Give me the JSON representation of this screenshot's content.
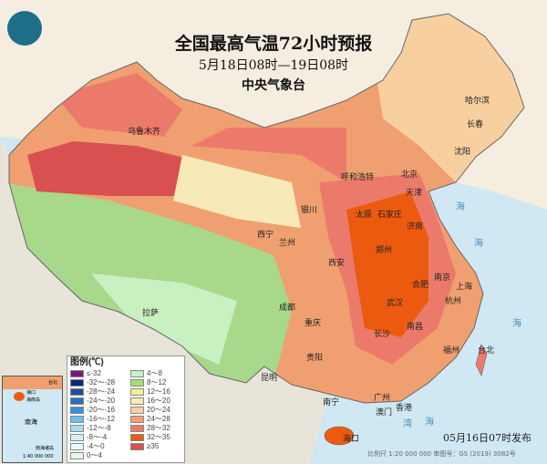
{
  "title": "全国最高气温72小时预报",
  "subtitle": "5月18日08时—19日08时",
  "issuer": "中央气象台",
  "published": "05月16日07时发布",
  "scale_note": "比例尺 1:20 000 000    审图号：GS (2019) 3082号",
  "legend": {
    "title": "图例(℃)",
    "items": [
      {
        "label": "≤-32",
        "color": "#7a1a7a"
      },
      {
        "label": "-32～-28",
        "color": "#0a2a7a"
      },
      {
        "label": "-28～-24",
        "color": "#1e4e9a"
      },
      {
        "label": "-24～-20",
        "color": "#2a6ec0"
      },
      {
        "label": "-20～-16",
        "color": "#3a8ee0"
      },
      {
        "label": "-16～-12",
        "color": "#6cc0f0"
      },
      {
        "label": "-12～-8",
        "color": "#a8dcf0"
      },
      {
        "label": "-8～-4",
        "color": "#d0eef8"
      },
      {
        "label": "-4～0",
        "color": "#eaf8fc"
      },
      {
        "label": "0～4",
        "color": "#e4f8e4"
      },
      {
        "label": "4～8",
        "color": "#c8f0c0"
      },
      {
        "label": "8～12",
        "color": "#a0e070"
      },
      {
        "label": "12～16",
        "color": "#f0f090"
      },
      {
        "label": "16～20",
        "color": "#f8eab8"
      },
      {
        "label": "20～24",
        "color": "#f8d0a0"
      },
      {
        "label": "24～28",
        "color": "#f0a070"
      },
      {
        "label": "28～32",
        "color": "#ec7a6a"
      },
      {
        "label": "32～35",
        "color": "#ec5a10"
      },
      {
        "label": "≥35",
        "color": "#d85050"
      }
    ]
  },
  "inset": {
    "sea_label": "南海",
    "caption": "南海诸岛",
    "scale": "1:40 000 000",
    "cities": [
      "海口",
      "海南岛",
      "台北"
    ]
  },
  "seas": [
    "海",
    "海",
    "海",
    "海",
    "湾"
  ],
  "cities": [
    {
      "name": "乌鲁木齐",
      "pos": [
        140,
        140
      ]
    },
    {
      "name": "哈尔滨",
      "pos": [
        510,
        106
      ]
    },
    {
      "name": "长春",
      "pos": [
        512,
        132
      ]
    },
    {
      "name": "沈阳",
      "pos": [
        498,
        162
      ]
    },
    {
      "name": "呼和浩特",
      "pos": [
        374,
        190
      ]
    },
    {
      "name": "北京",
      "pos": [
        440,
        187
      ]
    },
    {
      "name": "天津",
      "pos": [
        445,
        207
      ]
    },
    {
      "name": "银川",
      "pos": [
        330,
        226
      ]
    },
    {
      "name": "太原",
      "pos": [
        390,
        231
      ]
    },
    {
      "name": "石家庄",
      "pos": [
        414,
        231
      ]
    },
    {
      "name": "济南",
      "pos": [
        446,
        244
      ]
    },
    {
      "name": "西宁",
      "pos": [
        282,
        253
      ]
    },
    {
      "name": "兰州",
      "pos": [
        306,
        262
      ]
    },
    {
      "name": "郑州",
      "pos": [
        412,
        270
      ]
    },
    {
      "name": "西安",
      "pos": [
        360,
        284
      ]
    },
    {
      "name": "南京",
      "pos": [
        476,
        300
      ]
    },
    {
      "name": "合肥",
      "pos": [
        452,
        308
      ]
    },
    {
      "name": "上海",
      "pos": [
        500,
        310
      ]
    },
    {
      "name": "杭州",
      "pos": [
        488,
        326
      ]
    },
    {
      "name": "武汉",
      "pos": [
        424,
        328
      ]
    },
    {
      "name": "成都",
      "pos": [
        306,
        333
      ]
    },
    {
      "name": "拉萨",
      "pos": [
        156,
        339
      ]
    },
    {
      "name": "重庆",
      "pos": [
        334,
        350
      ]
    },
    {
      "name": "长沙",
      "pos": [
        410,
        362
      ]
    },
    {
      "name": "南昌",
      "pos": [
        446,
        354
      ]
    },
    {
      "name": "福州",
      "pos": [
        486,
        380
      ]
    },
    {
      "name": "台北",
      "pos": [
        524,
        380
      ]
    },
    {
      "name": "贵阳",
      "pos": [
        336,
        388
      ]
    },
    {
      "name": "昆明",
      "pos": [
        286,
        410
      ]
    },
    {
      "name": "南宁",
      "pos": [
        354,
        437
      ]
    },
    {
      "name": "广州",
      "pos": [
        410,
        432
      ]
    },
    {
      "name": "澳门",
      "pos": [
        412,
        448
      ]
    },
    {
      "name": "香港",
      "pos": [
        434,
        443
      ]
    },
    {
      "name": "海口",
      "pos": [
        376,
        477
      ]
    }
  ]
}
